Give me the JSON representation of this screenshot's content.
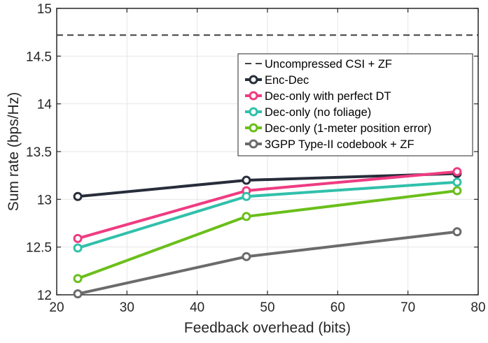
{
  "chart_data": {
    "type": "line",
    "xlabel": "Feedback overhead (bits)",
    "ylabel": "Sum rate (bps/Hz)",
    "xlim": [
      20,
      80
    ],
    "ylim": [
      12,
      15
    ],
    "xticks": [
      20,
      30,
      40,
      50,
      60,
      70,
      80
    ],
    "yticks": [
      12,
      12.5,
      13,
      13.5,
      14,
      14.5,
      15
    ],
    "xtick_labels": [
      "20",
      "30",
      "40",
      "50",
      "60",
      "70",
      "80"
    ],
    "ytick_labels": [
      "12",
      "12.5",
      "13",
      "13.5",
      "14",
      "14.5",
      "15"
    ],
    "grid": true,
    "legend_position": "top-right",
    "x": [
      23,
      47,
      77
    ],
    "series": [
      {
        "name": "Uncompressed CSI + ZF",
        "values": [
          14.72,
          14.72,
          14.72
        ],
        "color": "#404040",
        "style": "dashed",
        "marker": false,
        "full_width": true
      },
      {
        "name": "Enc-Dec",
        "values": [
          13.03,
          13.2,
          13.27
        ],
        "color": "#272d3a",
        "style": "solid",
        "marker": true
      },
      {
        "name": "Dec-only with perfect DT",
        "values": [
          12.59,
          13.09,
          13.29
        ],
        "color": "#ef3b82",
        "style": "solid",
        "marker": true
      },
      {
        "name": "Dec-only (no foliage)",
        "values": [
          12.49,
          13.03,
          13.18
        ],
        "color": "#31c0ab",
        "style": "solid",
        "marker": true
      },
      {
        "name": "Dec-only (1-meter position error)",
        "values": [
          12.17,
          12.82,
          13.09
        ],
        "color": "#6abf1a",
        "style": "solid",
        "marker": true
      },
      {
        "name": "3GPP Type-II codebook + ZF",
        "values": [
          12.01,
          12.4,
          12.66
        ],
        "color": "#6b6b6b",
        "style": "solid",
        "marker": true
      }
    ]
  }
}
